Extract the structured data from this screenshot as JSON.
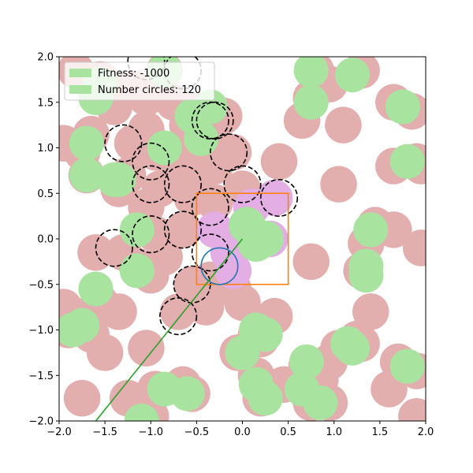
{
  "chart_data": {
    "type": "scatter",
    "title": "",
    "xlabel": "",
    "ylabel": "",
    "xlim": [
      -2,
      2
    ],
    "ylim": [
      -2,
      2
    ],
    "xticks": [
      "−2.0",
      "−1.5",
      "−1.0",
      "−0.5",
      "0.0",
      "0.5",
      "1.0",
      "1.5",
      "2.0"
    ],
    "yticks": [
      "−2.0",
      "−1.5",
      "−1.0",
      "−0.5",
      "0.0",
      "0.5",
      "1.0",
      "1.5",
      "2.0"
    ],
    "xtick_values": [
      -2,
      -1.5,
      -1,
      -0.5,
      0,
      0.5,
      1,
      1.5,
      2
    ],
    "ytick_values": [
      -2,
      -1.5,
      -1,
      -0.5,
      0,
      0.5,
      1,
      1.5,
      2
    ],
    "grid": false,
    "legend": {
      "placement": "top-left",
      "entries": [
        {
          "label": "Fitness: -1000",
          "color": "#a8e4a0"
        },
        {
          "label": "Number circles: 120",
          "color": "#a8e4a0"
        }
      ]
    },
    "colors": {
      "circle_fill": "#e3aeae",
      "overlap_fill": "#a8e4a0",
      "highlight_fill": "#e3aee3",
      "dashed_edge": "#000000",
      "box_edge": "#ff7f0e",
      "target_edge": "#1f77b4",
      "line": "#2ca02c"
    },
    "circle_radius": 0.2,
    "circles": [
      [
        -1.82,
        1.85
      ],
      [
        -1.55,
        1.75
      ],
      [
        -1.05,
        1.55
      ],
      [
        -0.85,
        1.85
      ],
      [
        -0.75,
        1.5
      ],
      [
        -0.5,
        1.4
      ],
      [
        -1.4,
        1.45
      ],
      [
        -1.2,
        1.65
      ],
      [
        -1.95,
        1.05
      ],
      [
        -1.75,
        0.95
      ],
      [
        -1.65,
        1.15
      ],
      [
        -1.7,
        0.7
      ],
      [
        -1.2,
        1.05
      ],
      [
        -1.05,
        1.2
      ],
      [
        -0.95,
        0.95
      ],
      [
        -0.75,
        0.85
      ],
      [
        -0.55,
        1.05
      ],
      [
        -0.35,
        1.2
      ],
      [
        -0.3,
        0.8
      ],
      [
        -0.1,
        0.95
      ],
      [
        -1.35,
        0.55
      ],
      [
        -1.25,
        0.7
      ],
      [
        -1.05,
        0.35
      ],
      [
        -0.9,
        0.55
      ],
      [
        -0.65,
        0.6
      ],
      [
        -0.5,
        0.7
      ],
      [
        -0.55,
        0.45
      ],
      [
        -0.3,
        0.4
      ],
      [
        0.0,
        0.55
      ],
      [
        -0.95,
        0.05
      ],
      [
        -0.65,
        0.1
      ],
      [
        -0.85,
        -0.2
      ],
      [
        -1.15,
        -0.3
      ],
      [
        -1.3,
        -0.15
      ],
      [
        -1.0,
        -0.4
      ],
      [
        -1.6,
        -0.15
      ],
      [
        -1.55,
        -0.7
      ],
      [
        -1.8,
        -0.85
      ],
      [
        -1.9,
        -1.0
      ],
      [
        -1.95,
        -0.75
      ],
      [
        -1.65,
        -1.05
      ],
      [
        -1.35,
        -0.8
      ],
      [
        -1.5,
        -1.25
      ],
      [
        -1.05,
        -1.2
      ],
      [
        -0.7,
        -0.8
      ],
      [
        -0.55,
        -0.5
      ],
      [
        -0.35,
        -0.45
      ],
      [
        -0.1,
        -0.55
      ],
      [
        0.0,
        -0.7
      ],
      [
        0.15,
        -1.05
      ],
      [
        0.35,
        -0.85
      ],
      [
        -0.05,
        -1.25
      ],
      [
        0.2,
        -1.1
      ],
      [
        0.15,
        -1.5
      ],
      [
        0.3,
        -1.65
      ],
      [
        0.2,
        -1.75
      ],
      [
        0.45,
        -1.6
      ],
      [
        0.7,
        -1.4
      ],
      [
        0.95,
        -1.35
      ],
      [
        0.85,
        -1.55
      ],
      [
        0.75,
        -1.8
      ],
      [
        0.95,
        -1.8
      ],
      [
        1.05,
        -1.2
      ],
      [
        1.25,
        -1.1
      ],
      [
        1.3,
        -1.15
      ],
      [
        1.4,
        -0.8
      ],
      [
        1.3,
        -0.35
      ],
      [
        1.35,
        -0.05
      ],
      [
        1.45,
        0.15
      ],
      [
        1.65,
        0.1
      ],
      [
        1.95,
        -0.1
      ],
      [
        1.7,
        -1.35
      ],
      [
        1.9,
        -1.45
      ],
      [
        1.6,
        -1.65
      ],
      [
        1.9,
        -1.95
      ],
      [
        1.65,
        0.8
      ],
      [
        1.9,
        0.85
      ],
      [
        1.95,
        0.8
      ],
      [
        1.85,
        1.4
      ],
      [
        1.65,
        1.5
      ],
      [
        1.1,
        1.25
      ],
      [
        0.95,
        1.7
      ],
      [
        0.75,
        1.55
      ],
      [
        0.65,
        1.3
      ],
      [
        0.8,
        1.85
      ],
      [
        1.3,
        1.85
      ],
      [
        1.05,
        0.6
      ],
      [
        0.4,
        0.85
      ],
      [
        0.75,
        -0.25
      ],
      [
        -0.95,
        -1.65
      ],
      [
        -0.65,
        -1.6
      ],
      [
        -0.55,
        -1.7
      ],
      [
        -1.25,
        -1.75
      ],
      [
        -1.0,
        -1.95
      ],
      [
        -1.75,
        -1.75
      ],
      [
        -0.4,
        -0.75
      ],
      [
        -0.2,
        1.35
      ],
      [
        -0.6,
        1.25
      ]
    ],
    "green_circles": [
      [
        -1.6,
        1.55
      ],
      [
        -1.55,
        1.7
      ],
      [
        -1.7,
        1.05
      ],
      [
        -1.7,
        0.7
      ],
      [
        -1.4,
        0.65
      ],
      [
        -1.35,
        0.65
      ],
      [
        -0.85,
        1.0
      ],
      [
        -0.45,
        1.1
      ],
      [
        -0.55,
        1.35
      ],
      [
        -0.35,
        1.45
      ],
      [
        -0.85,
        1.85
      ],
      [
        -1.15,
        0.1
      ],
      [
        -1.6,
        -0.55
      ],
      [
        -1.85,
        -1.0
      ],
      [
        -1.75,
        -0.95
      ],
      [
        -1.15,
        -0.35
      ],
      [
        0.15,
        -1.0
      ],
      [
        0.25,
        -1.05
      ],
      [
        0.0,
        -1.25
      ],
      [
        0.15,
        -1.6
      ],
      [
        0.25,
        -1.75
      ],
      [
        0.65,
        -1.65
      ],
      [
        0.85,
        -1.8
      ],
      [
        0.7,
        -1.35
      ],
      [
        1.15,
        -1.15
      ],
      [
        1.2,
        -1.2
      ],
      [
        1.35,
        -0.3
      ],
      [
        1.35,
        -0.4
      ],
      [
        1.4,
        0.1
      ],
      [
        1.8,
        -1.4
      ],
      [
        1.8,
        0.85
      ],
      [
        1.75,
        1.45
      ],
      [
        0.75,
        1.85
      ],
      [
        1.2,
        1.8
      ],
      [
        0.75,
        1.5
      ],
      [
        -0.85,
        -1.65
      ],
      [
        -0.6,
        -1.7
      ],
      [
        -1.1,
        -2.0
      ]
    ],
    "pink_circles": [
      [
        -0.3,
        0.1
      ],
      [
        -0.15,
        -0.15
      ],
      [
        0.3,
        -0.0
      ],
      [
        0.35,
        0.45
      ],
      [
        -0.1,
        -0.35
      ],
      [
        0.1,
        0.35
      ]
    ],
    "green_in_box": [
      [
        0.05,
        0.15
      ],
      [
        0.25,
        0.0
      ],
      [
        0.15,
        -0.05
      ]
    ],
    "dashed_circles": [
      [
        -1.3,
        1.05
      ],
      [
        -1.0,
        0.85
      ],
      [
        -1.0,
        0.6
      ],
      [
        -0.65,
        0.6
      ],
      [
        -0.35,
        1.3
      ],
      [
        -0.3,
        1.3
      ],
      [
        -0.15,
        0.95
      ],
      [
        0.0,
        0.6
      ],
      [
        -0.35,
        0.35
      ],
      [
        0.4,
        0.45
      ],
      [
        -0.65,
        0.1
      ],
      [
        -1.0,
        0.05
      ],
      [
        -1.4,
        -0.1
      ],
      [
        -0.35,
        -0.15
      ],
      [
        -0.55,
        -0.5
      ],
      [
        -0.7,
        -0.85
      ],
      [
        -1.05,
        1.95
      ],
      [
        -0.65,
        1.85
      ]
    ],
    "box": {
      "x0": -0.5,
      "x1": 0.5,
      "y0": -0.5,
      "y1": 0.5
    },
    "target": {
      "cx": -0.25,
      "cy": -0.3,
      "r": 0.2
    },
    "line": {
      "x": [
        -1.6,
        0.0
      ],
      "y": [
        -2.0,
        0.0
      ]
    }
  }
}
